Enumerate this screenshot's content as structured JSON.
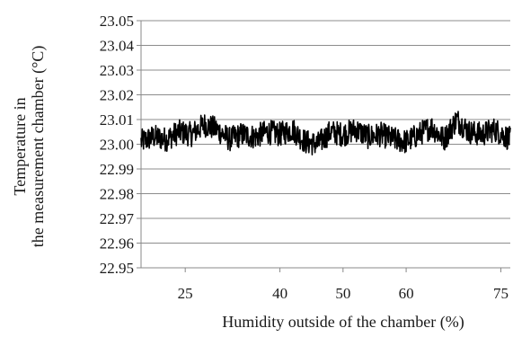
{
  "chart_data": {
    "type": "line",
    "title": "",
    "xlabel": "Humidity outside of the chamber (%)",
    "ylabel_lines": [
      "Temperature in",
      "the measurement chamber (°C)"
    ],
    "xlim": [
      18,
      76.5
    ],
    "ylim": [
      22.95,
      23.05
    ],
    "x_ticks": [
      25,
      40,
      50,
      60,
      75
    ],
    "x_tick_labels": [
      "25",
      "40",
      "50",
      "60",
      "75"
    ],
    "y_ticks": [
      22.95,
      22.96,
      22.97,
      22.98,
      22.99,
      23.0,
      23.01,
      23.02,
      23.03,
      23.04,
      23.05
    ],
    "y_tick_labels": [
      "22.95",
      "22.96",
      "22.97",
      "22.98",
      "22.99",
      "23.00",
      "23.01",
      "23.02",
      "23.03",
      "23.04",
      "23.05"
    ],
    "grid": "horizontal",
    "legend": "none",
    "series": [
      {
        "color": "#000000",
        "x": [
          18.0,
          20.0,
          22.0,
          24.0,
          26.0,
          28.0,
          30.0,
          32.0,
          34.0,
          36.0,
          38.0,
          40.0,
          42.0,
          44.0,
          46.0,
          48.0,
          50.0,
          52.0,
          54.0,
          56.0,
          58.0,
          60.0,
          62.0,
          64.0,
          66.0,
          68.0,
          70.0,
          72.0,
          74.0,
          76.5
        ],
        "y": [
          23.001,
          23.003,
          23.002,
          23.005,
          23.004,
          23.008,
          23.006,
          23.002,
          23.004,
          23.003,
          23.005,
          23.004,
          23.006,
          23.001,
          23.0,
          23.005,
          23.004,
          23.006,
          23.003,
          23.004,
          23.002,
          23.001,
          23.004,
          23.007,
          23.002,
          23.01,
          23.005,
          23.004,
          23.006,
          23.002
        ],
        "noise_amplitude": 0.005
      }
    ]
  }
}
